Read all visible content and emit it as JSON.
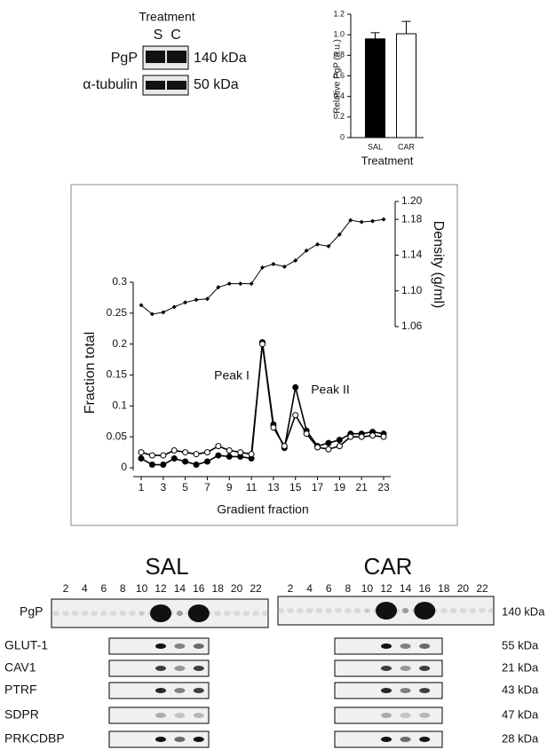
{
  "chart_data": [
    {
      "type": "bar",
      "categories": [
        "SAL",
        "CAR"
      ],
      "values": [
        0.96,
        1.01
      ],
      "errors": [
        0.06,
        0.12
      ],
      "colors": [
        "#000000",
        "#ffffff"
      ],
      "ylim": [
        0,
        1.2
      ],
      "yticks": [
        0,
        0.2,
        0.4,
        0.6,
        0.8,
        {
          "value": 1,
          "label": "1.0"
        },
        1.2
      ],
      "ylabel": "Relative PgP (a.u.)",
      "xlabel": "Treatment"
    },
    {
      "type": "line",
      "x": [
        1,
        2,
        3,
        4,
        5,
        6,
        7,
        8,
        9,
        10,
        11,
        12,
        13,
        14,
        15,
        16,
        17,
        18,
        19,
        20,
        21,
        22,
        23
      ],
      "xticks": [
        1,
        3,
        5,
        7,
        9,
        11,
        13,
        15,
        17,
        19,
        21,
        23
      ],
      "xlim": [
        1,
        23
      ],
      "ylim": [
        0,
        0.3
      ],
      "yticks": [
        0,
        0.05,
        0.1,
        0.15,
        0.2,
        0.25,
        0.3
      ],
      "y2lim": [
        1.06,
        1.2
      ],
      "y2ticks": [
        1.06,
        {
          "value": 1.1,
          "label": "1.10"
        },
        1.14,
        1.18,
        {
          "value": 1.2,
          "label": "1.20"
        }
      ],
      "xlabel": "Gradient fraction",
      "ylabel": "Fraction total",
      "y2label": "Density (g/ml)",
      "annotations": [
        "Peak I",
        "Peak II"
      ],
      "series": [
        {
          "marker": "filled",
          "color": "#000000",
          "values": [
            0.015,
            0.005,
            0.005,
            0.015,
            0.01,
            0.005,
            0.01,
            0.02,
            0.018,
            0.018,
            0.015,
            0.203,
            0.07,
            0.032,
            0.13,
            0.06,
            0.035,
            0.04,
            0.045,
            0.055,
            0.055,
            0.058,
            0.055
          ]
        },
        {
          "marker": "open",
          "color": "#000000",
          "values": [
            0.025,
            0.02,
            0.02,
            0.028,
            0.025,
            0.022,
            0.025,
            0.035,
            0.028,
            0.025,
            0.022,
            0.2,
            0.065,
            0.035,
            0.085,
            0.055,
            0.033,
            0.03,
            0.035,
            0.05,
            0.05,
            0.052,
            0.05
          ]
        },
        {
          "marker": "diamond",
          "color": "#000000",
          "axis": "y2",
          "values": [
            1.084,
            1.074,
            1.076,
            1.082,
            1.087,
            1.09,
            1.091,
            1.104,
            1.108,
            1.108,
            1.108,
            1.126,
            1.13,
            1.127,
            1.134,
            1.145,
            1.152,
            1.15,
            1.163,
            1.179,
            1.177,
            1.178,
            1.18
          ]
        }
      ]
    }
  ],
  "top_blot": {
    "title": "Treatment",
    "lanes": [
      "S",
      "C"
    ],
    "rows": [
      {
        "label": "PgP",
        "size": "140 kDa"
      },
      {
        "label": "α-tubulin",
        "size": "50 kDa"
      }
    ]
  },
  "gradient_blot": {
    "groups": [
      "SAL",
      "CAR"
    ],
    "lanes": [
      "2",
      "4",
      "6",
      "8",
      "10",
      "12",
      "14",
      "16",
      "18",
      "20",
      "22"
    ],
    "rows": [
      {
        "label": "PgP",
        "size": "140 kDa"
      },
      {
        "label": "GLUT-1",
        "size": "55 kDa"
      },
      {
        "label": "CAV1",
        "size": "21 kDa"
      },
      {
        "label": "PTRF",
        "size": "43 kDa"
      },
      {
        "label": "SDPR",
        "size": "47 kDa"
      },
      {
        "label": "PRKCDBP",
        "size": "28 kDa"
      }
    ]
  }
}
